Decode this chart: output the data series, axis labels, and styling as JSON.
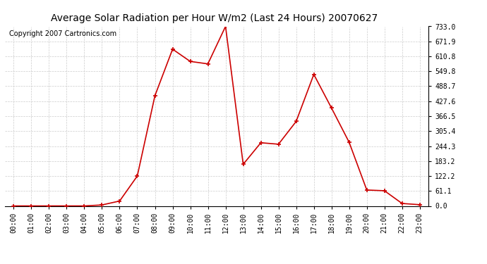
{
  "title": "Average Solar Radiation per Hour W/m2 (Last 24 Hours) 20070627",
  "copyright": "Copyright 2007 Cartronics.com",
  "hours": [
    "00:00",
    "01:00",
    "02:00",
    "03:00",
    "04:00",
    "05:00",
    "06:00",
    "07:00",
    "08:00",
    "09:00",
    "10:00",
    "11:00",
    "12:00",
    "13:00",
    "14:00",
    "15:00",
    "16:00",
    "17:00",
    "18:00",
    "19:00",
    "20:00",
    "21:00",
    "22:00",
    "23:00"
  ],
  "values": [
    0.0,
    0.0,
    0.0,
    0.0,
    0.0,
    4.0,
    20.0,
    122.0,
    450.0,
    640.0,
    590.0,
    580.0,
    733.0,
    170.0,
    258.0,
    252.0,
    345.0,
    537.0,
    400.0,
    260.0,
    65.0,
    62.0,
    10.0,
    5.0
  ],
  "line_color": "#cc0000",
  "marker": "+",
  "marker_size": 4,
  "line_width": 1.2,
  "background_color": "#ffffff",
  "grid_color": "#cccccc",
  "yticks": [
    0.0,
    61.1,
    122.2,
    183.2,
    244.3,
    305.4,
    366.5,
    427.6,
    488.7,
    549.8,
    610.8,
    671.9,
    733.0
  ],
  "ymax": 733.0,
  "ymin": 0.0,
  "title_fontsize": 10,
  "copyright_fontsize": 7,
  "tick_fontsize": 7
}
